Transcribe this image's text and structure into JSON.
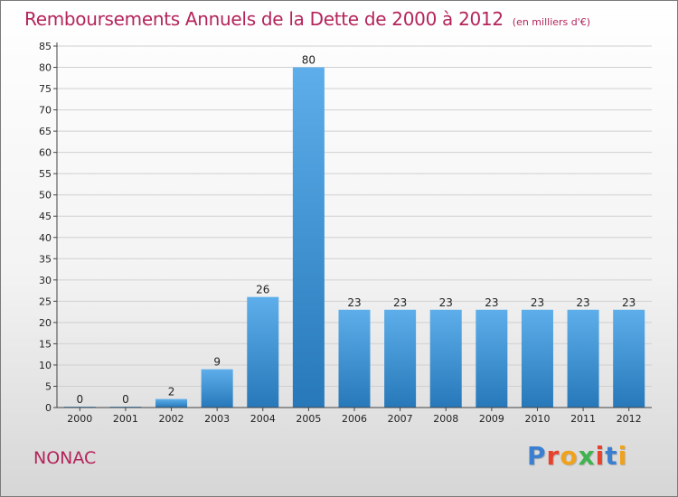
{
  "header": {
    "title": "Remboursements Annuels de la Dette de 2000 à 2012",
    "unit": "(en milliers d'€)"
  },
  "footer": {
    "town": "NONAC",
    "logo_letters": [
      "P",
      "r",
      "o",
      "x",
      "i",
      "t",
      "i"
    ],
    "logo_colors": [
      "#3b7fd1",
      "#e8412c",
      "#f0a21c",
      "#3fb34f",
      "#e8412c",
      "#3b7fd1",
      "#f0a21c"
    ]
  },
  "colors": {
    "bar_light": "#5daeea",
    "bar_dark": "#2778b9",
    "axis": "#444444",
    "grid": "#d0d0d0",
    "title": "#b4245b"
  },
  "chart_data": {
    "type": "bar",
    "title": "Remboursements Annuels de la Dette de 2000 à 2012",
    "xlabel": "",
    "ylabel": "",
    "categories": [
      "2000",
      "2001",
      "2002",
      "2003",
      "2004",
      "2005",
      "2006",
      "2007",
      "2008",
      "2009",
      "2010",
      "2011",
      "2012"
    ],
    "values": [
      0,
      0,
      2,
      9,
      26,
      80,
      23,
      23,
      23,
      23,
      23,
      23,
      23
    ],
    "ylim": [
      0,
      85
    ],
    "yticks": [
      0,
      5,
      10,
      15,
      20,
      25,
      30,
      35,
      40,
      45,
      50,
      55,
      60,
      65,
      70,
      75,
      80,
      85
    ],
    "grid": true,
    "show_value_labels": true
  }
}
